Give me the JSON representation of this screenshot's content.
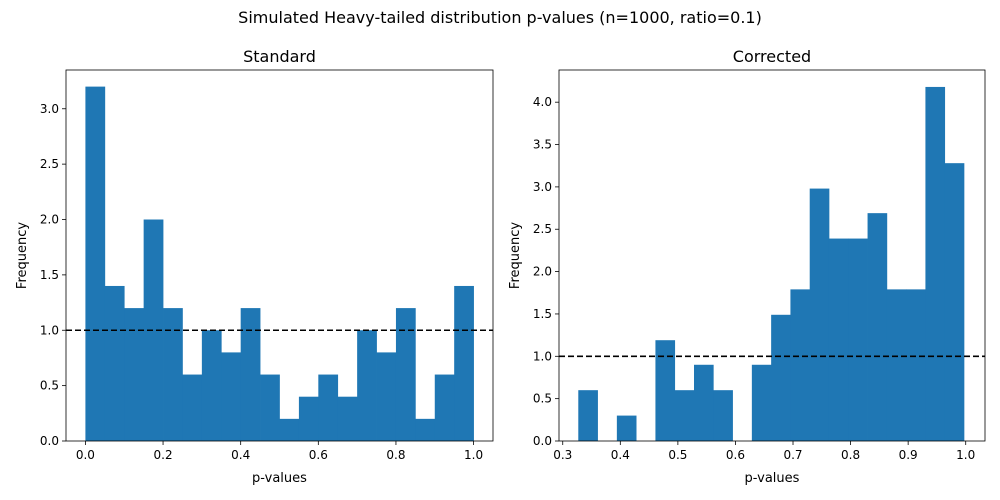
{
  "figure": {
    "suptitle": "Simulated Heavy-tailed distribution p-values (n=1000, ratio=0.1)"
  },
  "chart_data": [
    {
      "type": "bar",
      "title": "Standard",
      "xlabel": "p-values",
      "ylabel": "Frequency",
      "xlim": [
        -0.05,
        1.05
      ],
      "ylim": [
        0,
        3.35
      ],
      "xticks": [
        0.0,
        0.2,
        0.4,
        0.6,
        0.8,
        1.0
      ],
      "xtick_labels": [
        "0.0",
        "0.2",
        "0.4",
        "0.6",
        "0.8",
        "1.0"
      ],
      "yticks": [
        0.0,
        0.5,
        1.0,
        1.5,
        2.0,
        2.5,
        3.0
      ],
      "ytick_labels": [
        "0.0",
        "0.5",
        "1.0",
        "1.5",
        "2.0",
        "2.5",
        "3.0"
      ],
      "bin_edges": [
        0.0,
        0.05,
        0.1,
        0.15,
        0.2,
        0.25,
        0.3,
        0.35,
        0.4,
        0.45,
        0.5,
        0.55,
        0.6,
        0.65,
        0.7,
        0.75,
        0.8,
        0.85,
        0.9,
        0.95,
        1.0
      ],
      "values": [
        3.2,
        1.4,
        1.2,
        2.0,
        1.2,
        0.6,
        1.0,
        0.8,
        1.2,
        0.6,
        0.2,
        0.4,
        0.6,
        0.4,
        1.0,
        0.8,
        1.2,
        0.2,
        0.6,
        1.4
      ],
      "reference_line": 1.0,
      "bar_color": "#1f77b4",
      "grid": false
    },
    {
      "type": "bar",
      "title": "Corrected",
      "xlabel": "p-values",
      "ylabel": "Frequency",
      "xlim": [
        0.2935,
        1.0335
      ],
      "ylim": [
        0,
        4.38
      ],
      "xticks": [
        0.3,
        0.4,
        0.5,
        0.6,
        0.7,
        0.8,
        0.9,
        1.0
      ],
      "xtick_labels": [
        "0.3",
        "0.4",
        "0.5",
        "0.6",
        "0.7",
        "0.8",
        "0.9",
        "1.0"
      ],
      "yticks": [
        0.0,
        0.5,
        1.0,
        1.5,
        2.0,
        2.5,
        3.0,
        3.5,
        4.0
      ],
      "ytick_labels": [
        "0.0",
        "0.5",
        "1.0",
        "1.5",
        "2.0",
        "2.5",
        "3.0",
        "3.5",
        "4.0"
      ],
      "bin_edges": [
        0.327,
        0.3605,
        0.394,
        0.4275,
        0.461,
        0.4945,
        0.528,
        0.5615,
        0.595,
        0.6285,
        0.662,
        0.6955,
        0.729,
        0.7625,
        0.796,
        0.8295,
        0.863,
        0.8965,
        0.93,
        0.9635,
        0.997
      ],
      "values": [
        0.6,
        0.0,
        0.3,
        0.0,
        1.19,
        0.6,
        0.9,
        0.6,
        0.0,
        0.9,
        1.49,
        1.79,
        2.98,
        2.39,
        2.39,
        2.69,
        1.79,
        1.79,
        4.18,
        3.28
      ],
      "reference_line": 1.0,
      "bar_color": "#1f77b4",
      "grid": false
    }
  ]
}
